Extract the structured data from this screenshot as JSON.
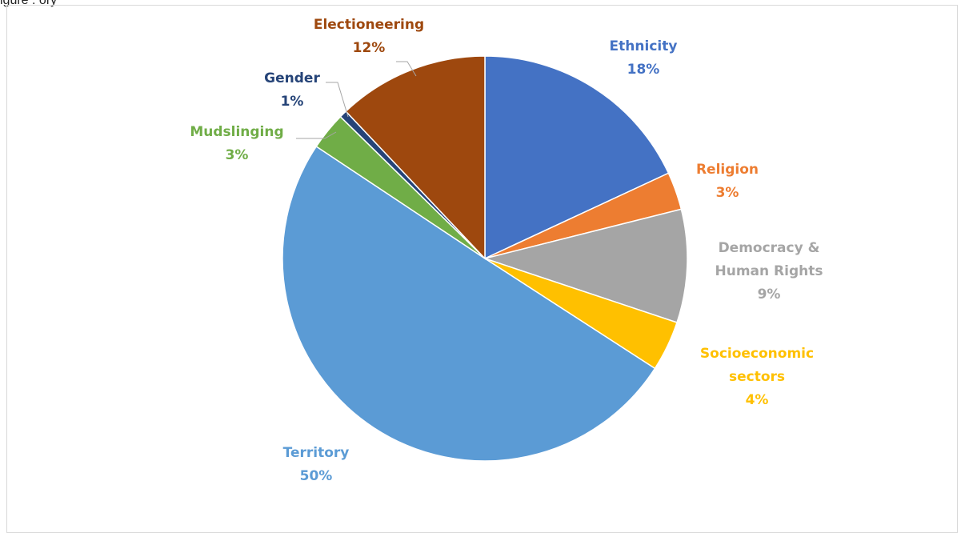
{
  "page": {
    "caption": "igure      :      ory"
  },
  "chart_data": {
    "type": "pie",
    "title": "",
    "slices": [
      {
        "name": "Ethnicity",
        "label_lines": [
          "Ethnicity"
        ],
        "pct_label": "18%",
        "value": 18,
        "color": "#4472C4"
      },
      {
        "name": "Religion",
        "label_lines": [
          "Religion"
        ],
        "pct_label": "3%",
        "value": 3,
        "color": "#ED7D31"
      },
      {
        "name": "Democracy & Human Rights",
        "label_lines": [
          "Democracy &",
          "Human Rights"
        ],
        "pct_label": "9%",
        "value": 9,
        "color": "#A5A5A5"
      },
      {
        "name": "Socioeconomic sectors",
        "label_lines": [
          "Socioeconomic",
          "sectors"
        ],
        "pct_label": "4%",
        "value": 4,
        "color": "#FFC000"
      },
      {
        "name": "Territory",
        "label_lines": [
          "Territory"
        ],
        "pct_label": "50%",
        "value": 50,
        "color": "#5B9BD5"
      },
      {
        "name": "Mudslinging",
        "label_lines": [
          "Mudslinging"
        ],
        "pct_label": "3%",
        "value": 3,
        "color": "#70AD47"
      },
      {
        "name": "Gender",
        "label_lines": [
          "Gender"
        ],
        "pct_label": "1%",
        "value": 0.6,
        "color": "#264478"
      },
      {
        "name": "Electioneering",
        "label_lines": [
          "Electioneering"
        ],
        "pct_label": "12%",
        "value": 12,
        "color": "#9E480E"
      }
    ],
    "start_angle": "12 o'clock",
    "direction": "clockwise",
    "legend": "none (data labels outside slices)"
  }
}
